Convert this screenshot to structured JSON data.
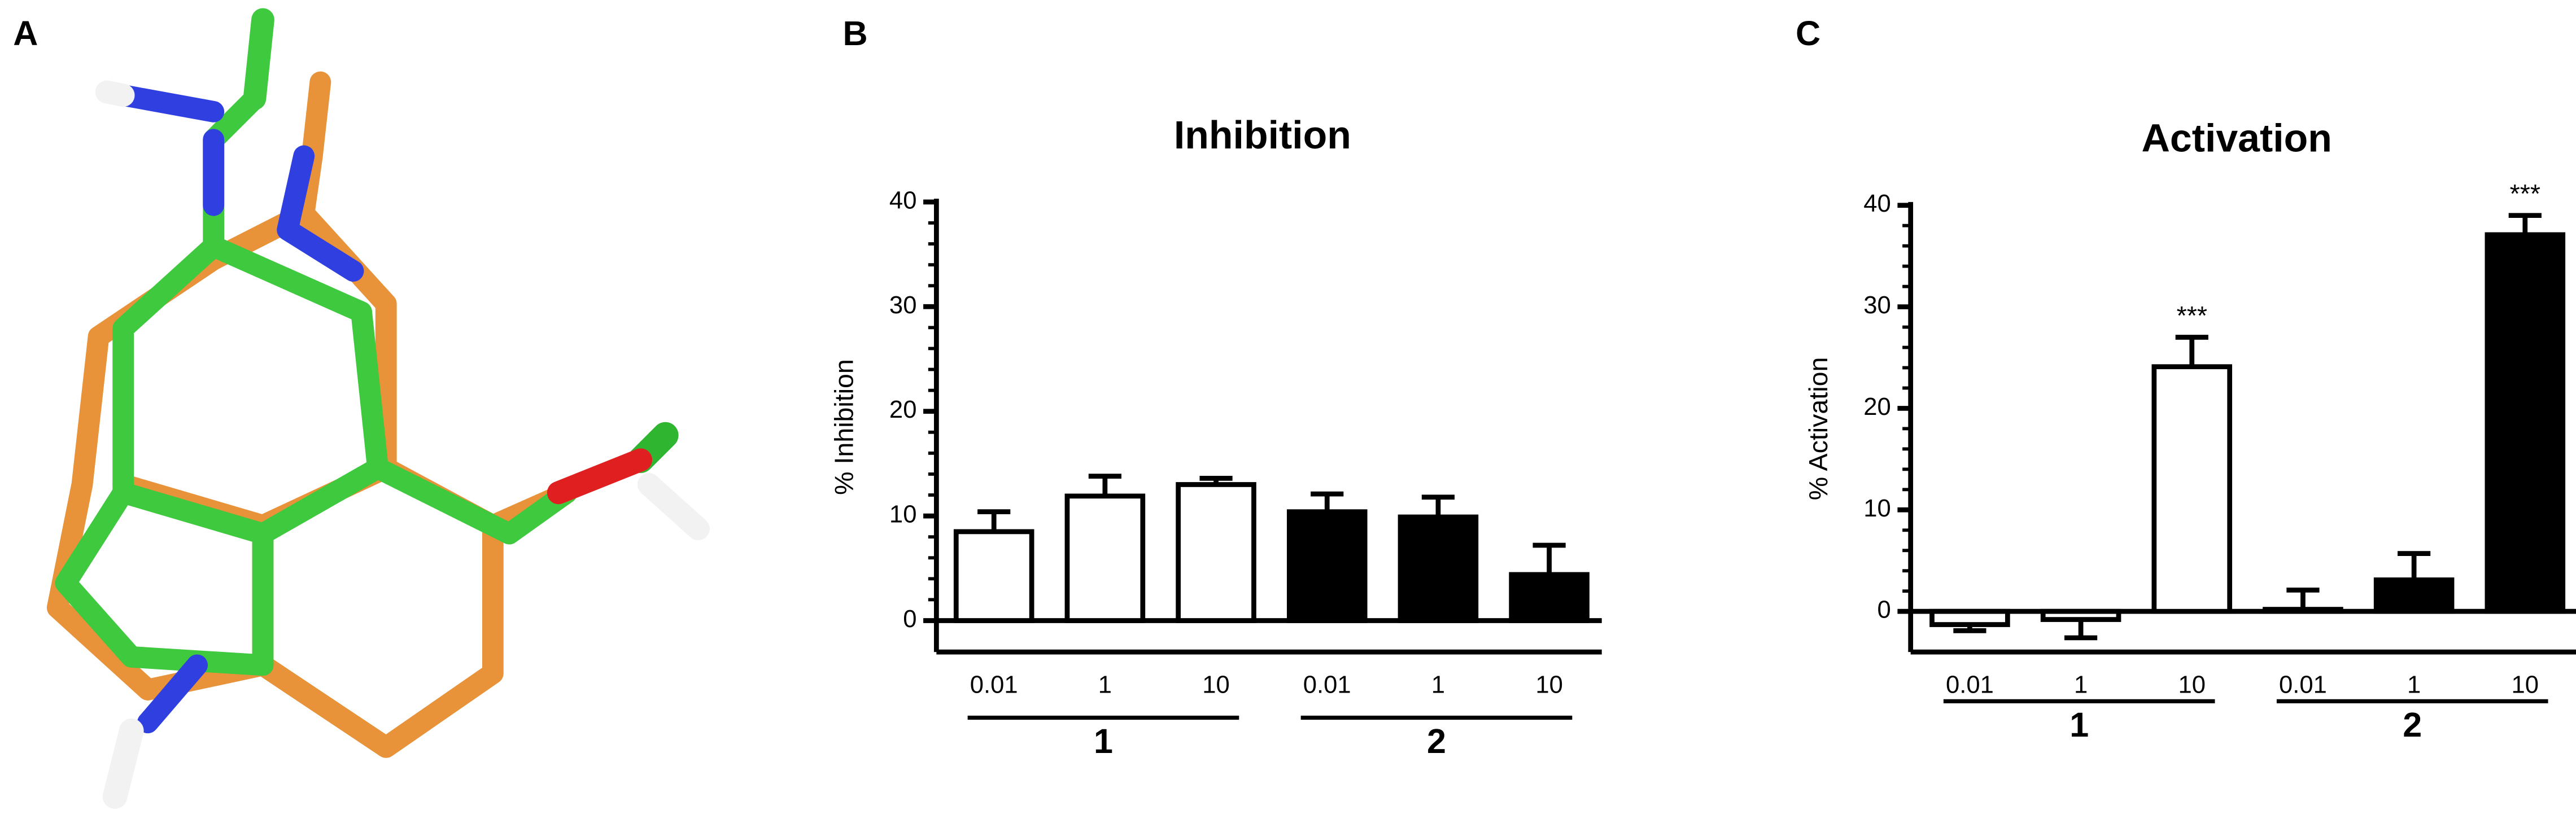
{
  "panel_a": {
    "label": "A"
  },
  "chart_data": [
    {
      "type": "bar",
      "panel": "B",
      "title": "Inhibition",
      "y_label": "% Inhibition",
      "categories": [
        "0.01",
        "1",
        "10"
      ],
      "series": [
        {
          "name": "1",
          "color": "#ffffff",
          "values": [
            8.5,
            11.9,
            13.0
          ],
          "errors": [
            1.9,
            1.9,
            0.6
          ]
        },
        {
          "name": "2",
          "color": "#000000",
          "values": [
            10.4,
            9.9,
            4.4
          ],
          "errors": [
            1.7,
            1.9,
            2.8
          ]
        }
      ],
      "ylim": [
        -3,
        40
      ],
      "yticks": [
        0,
        10,
        20,
        30,
        40
      ]
    },
    {
      "type": "bar",
      "panel": "C",
      "title": "Activation",
      "y_label": "% Activation",
      "categories": [
        "0.01",
        "1",
        "10"
      ],
      "series": [
        {
          "name": "1",
          "color": "#ffffff",
          "values": [
            -1.3,
            -0.8,
            24.1
          ],
          "errors": [
            0.6,
            1.8,
            2.9
          ],
          "significance": [
            null,
            null,
            "***"
          ]
        },
        {
          "name": "2",
          "color": "#000000",
          "values": [
            0.2,
            3.1,
            37.1
          ],
          "errors": [
            1.9,
            2.6,
            1.9
          ],
          "significance": [
            null,
            null,
            "***"
          ]
        }
      ],
      "ylim": [
        -4,
        40
      ],
      "yticks": [
        0,
        10,
        20,
        30,
        40
      ]
    }
  ]
}
